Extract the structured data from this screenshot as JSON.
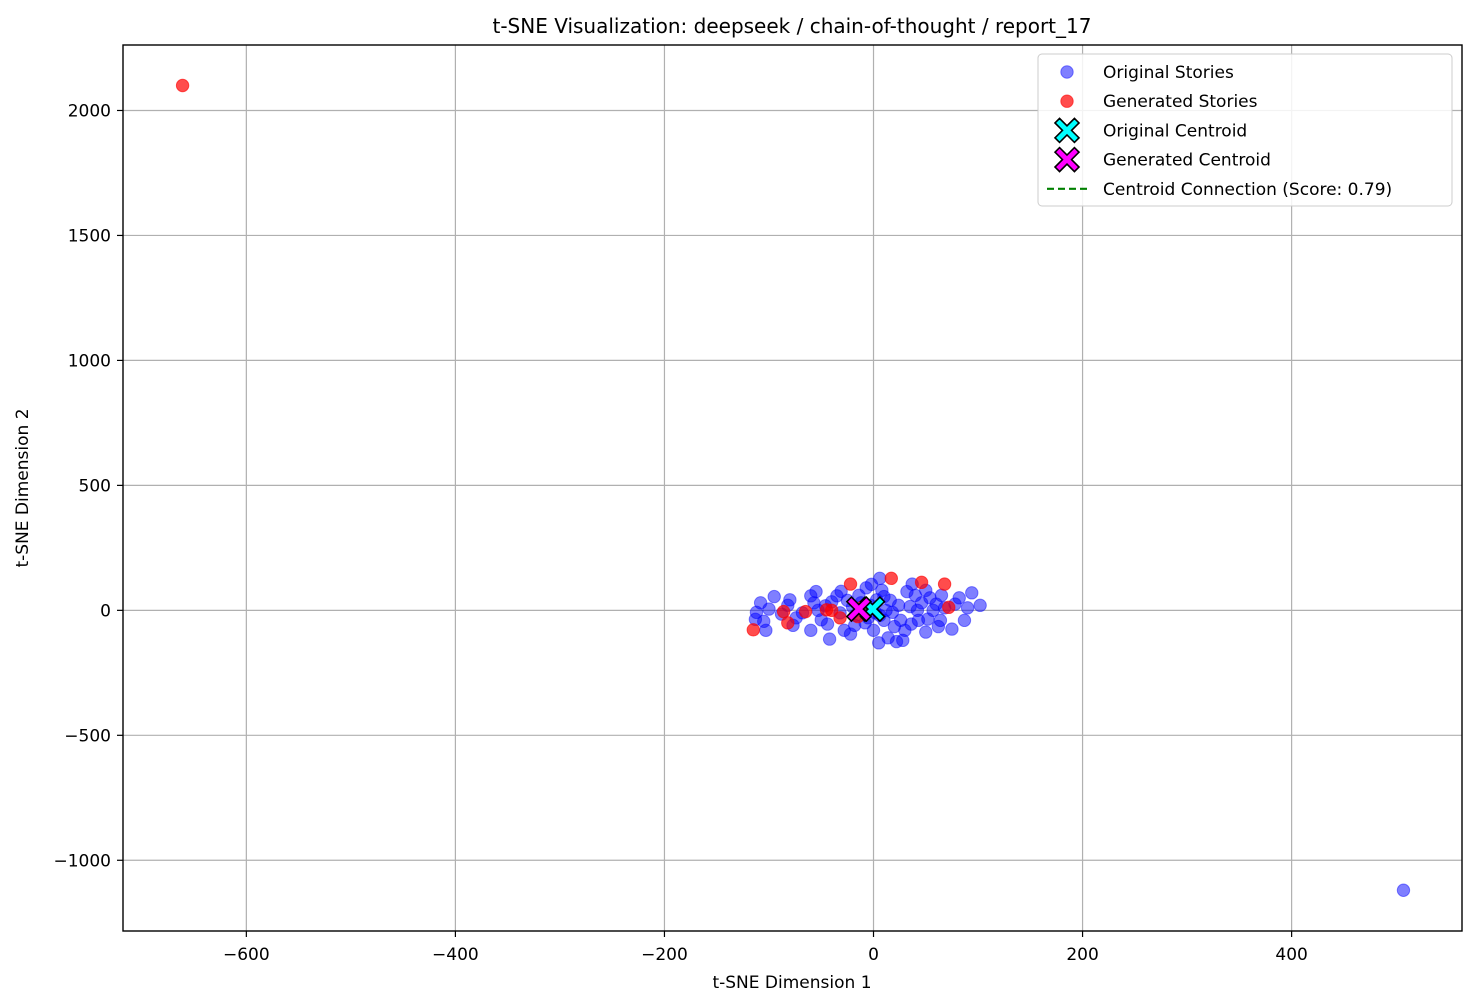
{
  "chart_data": {
    "type": "scatter",
    "title": "t-SNE Visualization: deepseek / chain-of-thought / report_17",
    "xlabel": "t-SNE Dimension 1",
    "ylabel": "t-SNE Dimension 2",
    "xlim": [
      -718,
      563
    ],
    "ylim": [
      -1283,
      2262
    ],
    "xticks": [
      -600,
      -400,
      -200,
      0,
      200,
      400
    ],
    "xtick_labels": [
      "−600",
      "−400",
      "−200",
      "0",
      "200",
      "400"
    ],
    "yticks": [
      -1000,
      -500,
      0,
      500,
      1000,
      1500,
      2000
    ],
    "ytick_labels": [
      "−1000",
      "−500",
      "0",
      "500",
      "1000",
      "1500",
      "2000"
    ],
    "grid": true,
    "legend_position": "upper right",
    "colors": {
      "original": "#0000ff",
      "generated": "#ff0000",
      "original_centroid": "#00ffff",
      "generated_centroid": "#ff00ff",
      "connection": "#008000"
    },
    "series": [
      {
        "name": "Original Stories",
        "marker": "circle",
        "points": [
          [
            -113,
            -36
          ],
          [
            -112,
            -8
          ],
          [
            -108,
            30
          ],
          [
            -105,
            -44
          ],
          [
            -103,
            -80
          ],
          [
            -100,
            5
          ],
          [
            -95,
            55
          ],
          [
            -88,
            -15
          ],
          [
            -82,
            20
          ],
          [
            -80,
            42
          ],
          [
            -77,
            -60
          ],
          [
            -74,
            -30
          ],
          [
            -68,
            -10
          ],
          [
            -60,
            58
          ],
          [
            -60,
            -80
          ],
          [
            -57,
            30
          ],
          [
            -55,
            75
          ],
          [
            -53,
            0
          ],
          [
            -50,
            -38
          ],
          [
            -46,
            18
          ],
          [
            -44,
            -55
          ],
          [
            -42,
            -115
          ],
          [
            -40,
            34
          ],
          [
            -35,
            58
          ],
          [
            -32,
            -10
          ],
          [
            -31,
            76
          ],
          [
            -28,
            -80
          ],
          [
            -25,
            40
          ],
          [
            -22,
            -95
          ],
          [
            -20,
            14
          ],
          [
            -18,
            -60
          ],
          [
            -17,
            -20
          ],
          [
            -14,
            60
          ],
          [
            -12,
            30
          ],
          [
            -10,
            0
          ],
          [
            -8,
            -50
          ],
          [
            -7,
            90
          ],
          [
            -5,
            -30
          ],
          [
            -3,
            20
          ],
          [
            -2,
            104
          ],
          [
            0,
            -80
          ],
          [
            2,
            -10
          ],
          [
            3,
            42
          ],
          [
            5,
            -130
          ],
          [
            6,
            128
          ],
          [
            6,
            -20
          ],
          [
            8,
            80
          ],
          [
            10,
            55
          ],
          [
            10,
            -40
          ],
          [
            12,
            0
          ],
          [
            14,
            -110
          ],
          [
            16,
            40
          ],
          [
            18,
            -8
          ],
          [
            20,
            -65
          ],
          [
            22,
            -125
          ],
          [
            24,
            20
          ],
          [
            26,
            -40
          ],
          [
            28,
            -120
          ],
          [
            30,
            -80
          ],
          [
            32,
            75
          ],
          [
            35,
            15
          ],
          [
            36,
            -55
          ],
          [
            37,
            105
          ],
          [
            40,
            60
          ],
          [
            42,
            0
          ],
          [
            43,
            -40
          ],
          [
            46,
            30
          ],
          [
            50,
            80
          ],
          [
            50,
            -87
          ],
          [
            52,
            -35
          ],
          [
            54,
            50
          ],
          [
            57,
            0
          ],
          [
            60,
            25
          ],
          [
            62,
            -65
          ],
          [
            64,
            -40
          ],
          [
            65,
            60
          ],
          [
            68,
            10
          ],
          [
            75,
            -75
          ],
          [
            78,
            25
          ],
          [
            82,
            50
          ],
          [
            87,
            -40
          ],
          [
            90,
            10
          ],
          [
            94,
            70
          ],
          [
            102,
            20
          ],
          [
            507,
            -1120
          ]
        ]
      },
      {
        "name": "Generated Stories",
        "marker": "circle",
        "points": [
          [
            -661,
            2100
          ],
          [
            -115,
            -78
          ],
          [
            -86,
            -5
          ],
          [
            -82,
            -50
          ],
          [
            -65,
            -5
          ],
          [
            -45,
            2
          ],
          [
            -40,
            0
          ],
          [
            -32,
            -30
          ],
          [
            -22,
            105
          ],
          [
            -15,
            -25
          ],
          [
            -10,
            15
          ],
          [
            17,
            128
          ],
          [
            46,
            112
          ],
          [
            68,
            105
          ],
          [
            72,
            12
          ]
        ]
      },
      {
        "name": "Original Centroid",
        "marker": "X",
        "points": [
          [
            -1,
            5
          ]
        ]
      },
      {
        "name": "Generated Centroid",
        "marker": "X",
        "points": [
          [
            -14,
            5
          ]
        ]
      },
      {
        "name": "Centroid Connection (Score: 0.79)",
        "marker": "dashed-line",
        "points": [
          [
            -1,
            5
          ],
          [
            -14,
            5
          ]
        ]
      }
    ]
  }
}
